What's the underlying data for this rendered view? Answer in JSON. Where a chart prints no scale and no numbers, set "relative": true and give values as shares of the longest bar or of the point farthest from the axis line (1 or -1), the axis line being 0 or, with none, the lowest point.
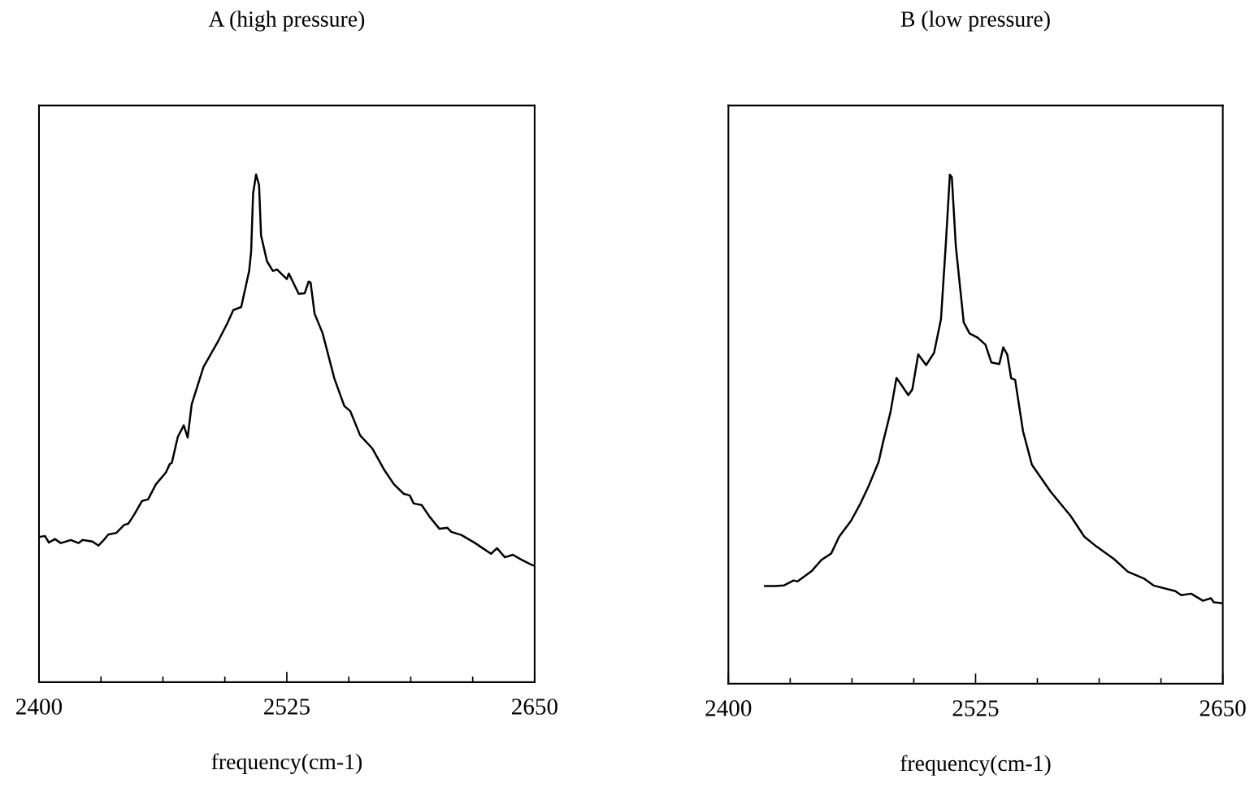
{
  "chart_data": [
    {
      "type": "line",
      "title": "A (high pressure)",
      "xlabel": "frequency(cm-1)",
      "relative": true,
      "xlim": [
        2400,
        2650
      ],
      "xticks": [
        2400,
        {
          "value": 2431.25,
          "label": null
        },
        {
          "value": 2462.5,
          "label": null
        },
        {
          "value": 2493.75,
          "label": null
        },
        2525,
        {
          "value": 2556.25,
          "label": null
        },
        {
          "value": 2587.5,
          "label": null
        },
        {
          "value": 2618.75,
          "label": null
        },
        2650
      ],
      "tick_labels": "x",
      "grid": false,
      "legend": false,
      "marker": "none",
      "line_style": "solid",
      "series": [
        {
          "color": "#000000",
          "x": [
            2400,
            2403,
            2405,
            2408,
            2411,
            2416,
            2420,
            2422,
            2427,
            2430,
            2432,
            2435,
            2439,
            2443,
            2445,
            2448,
            2452,
            2455,
            2459,
            2464,
            2466,
            2467,
            2470,
            2473,
            2475,
            2477,
            2483,
            2490,
            2495,
            2498,
            2502,
            2506,
            2507,
            2508,
            2509.5,
            2511,
            2512,
            2515,
            2518,
            2520,
            2525,
            2526,
            2531,
            2534,
            2536,
            2537,
            2539,
            2543,
            2549,
            2554,
            2557,
            2562,
            2568,
            2574,
            2579,
            2584,
            2587,
            2589,
            2593,
            2597,
            2602,
            2606,
            2608,
            2613,
            2620,
            2623,
            2628,
            2631,
            2635,
            2639,
            2643,
            2648,
            2650
          ],
          "values": [
            0.286,
            0.288,
            0.275,
            0.282,
            0.274,
            0.28,
            0.274,
            0.28,
            0.277,
            0.269,
            0.277,
            0.291,
            0.294,
            0.31,
            0.312,
            0.33,
            0.357,
            0.36,
            0.39,
            0.413,
            0.43,
            0.432,
            0.483,
            0.506,
            0.482,
            0.547,
            0.621,
            0.669,
            0.707,
            0.733,
            0.739,
            0.81,
            0.848,
            0.963,
            1,
            0.979,
            0.88,
            0.829,
            0.81,
            0.813,
            0.794,
            0.805,
            0.765,
            0.766,
            0.789,
            0.787,
            0.726,
            0.688,
            0.598,
            0.544,
            0.534,
            0.486,
            0.461,
            0.419,
            0.39,
            0.371,
            0.368,
            0.352,
            0.349,
            0.326,
            0.302,
            0.304,
            0.296,
            0.29,
            0.274,
            0.266,
            0.253,
            0.264,
            0.246,
            0.251,
            0.242,
            0.232,
            0.229
          ]
        }
      ]
    },
    {
      "type": "line",
      "title": "B (low pressure)",
      "xlabel": "frequency(cm-1)",
      "relative": true,
      "xlim": [
        2400,
        2650
      ],
      "xticks": [
        2400,
        {
          "value": 2431.25,
          "label": null
        },
        {
          "value": 2462.5,
          "label": null
        },
        {
          "value": 2493.75,
          "label": null
        },
        2525,
        {
          "value": 2556.25,
          "label": null
        },
        {
          "value": 2587.5,
          "label": null
        },
        {
          "value": 2618.75,
          "label": null
        },
        2650
      ],
      "tick_labels": "x",
      "grid": false,
      "legend": false,
      "marker": "none",
      "line_style": "solid",
      "series": [
        {
          "color": "#000000",
          "x": [
            2418.5,
            2424,
            2428,
            2433,
            2435,
            2442,
            2447,
            2452,
            2456,
            2462,
            2466.5,
            2471,
            2476,
            2478,
            2482,
            2485,
            2488,
            2491,
            2493,
            2496,
            2500,
            2504,
            2507.5,
            2510,
            2512,
            2513,
            2515,
            2519,
            2522,
            2526,
            2530,
            2533,
            2537,
            2539,
            2541,
            2543,
            2545,
            2549,
            2553.5,
            2563,
            2573,
            2580,
            2586,
            2595,
            2602,
            2610,
            2615,
            2626,
            2629,
            2634,
            2640,
            2644,
            2645.5,
            2650
          ],
          "values": [
            0.192,
            0.192,
            0.193,
            0.203,
            0.201,
            0.221,
            0.243,
            0.256,
            0.289,
            0.32,
            0.352,
            0.389,
            0.436,
            0.471,
            0.534,
            0.601,
            0.584,
            0.567,
            0.578,
            0.647,
            0.626,
            0.65,
            0.716,
            0.867,
            1,
            0.995,
            0.86,
            0.71,
            0.688,
            0.68,
            0.666,
            0.631,
            0.628,
            0.661,
            0.647,
            0.6,
            0.597,
            0.496,
            0.43,
            0.377,
            0.33,
            0.289,
            0.27,
            0.245,
            0.22,
            0.207,
            0.193,
            0.182,
            0.174,
            0.177,
            0.163,
            0.168,
            0.16,
            0.158
          ]
        }
      ]
    }
  ]
}
